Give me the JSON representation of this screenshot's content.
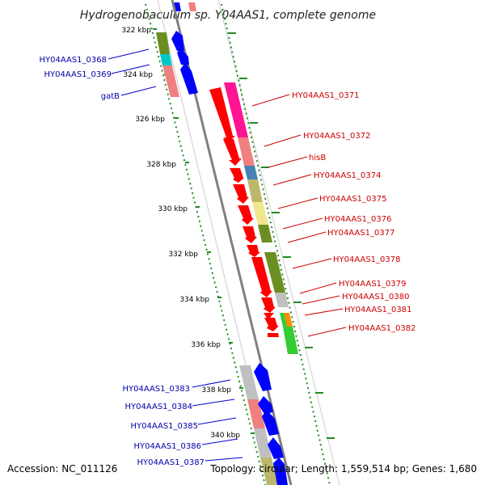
{
  "title": "Hydrogenobaculum sp. Y04AAS1, complete genome",
  "footer": {
    "accession": "Accession: NC_011126",
    "topology": "Topology: circular; Length: 1,559,514 bp; Genes: 1,680"
  },
  "colors": {
    "forward_label": "#cc0000",
    "reverse_label": "#0000aa",
    "forward_arrow": "#ff0000",
    "reverse_arrow": "#0000ff",
    "backbone": "#808080",
    "tick": "#228b22"
  },
  "ticks": [
    "322 kbp",
    "324 kbp",
    "326 kbp",
    "328 kbp",
    "330 kbp",
    "332 kbp",
    "334 kbp",
    "336 kbp",
    "338 kbp",
    "340 kbp"
  ],
  "genes": [
    {
      "label": "HY04AAS1_0368",
      "strand": "reverse",
      "cog_color": "#00c8c8"
    },
    {
      "label": "HY04AAS1_0369",
      "strand": "reverse",
      "cog_color": "#00c8c8"
    },
    {
      "label": "gatB",
      "strand": "reverse",
      "cog_color": "#f08080"
    },
    {
      "label": "HY04AAS1_0371",
      "strand": "forward",
      "cog_color": "#ff1493"
    },
    {
      "label": "HY04AAS1_0372",
      "strand": "forward",
      "cog_color": "#f08080"
    },
    {
      "label": "hisB",
      "strand": "forward",
      "cog_color": "#4682b4"
    },
    {
      "label": "HY04AAS1_0374",
      "strand": "forward",
      "cog_color": "#bdb76b"
    },
    {
      "label": "HY04AAS1_0375",
      "strand": "forward",
      "cog_color": "#f0e68c"
    },
    {
      "label": "HY04AAS1_0376",
      "strand": "forward",
      "cog_color": "#6b8e23"
    },
    {
      "label": "HY04AAS1_0377",
      "strand": "forward",
      "cog_color": "#6b8e23"
    },
    {
      "label": "HY04AAS1_0378",
      "strand": "forward",
      "cog_color": "#6b8e23"
    },
    {
      "label": "HY04AAS1_0379",
      "strand": "forward",
      "cog_color": "#c0c0c0"
    },
    {
      "label": "HY04AAS1_0380",
      "strand": "forward",
      "cog_color": "#c0c0c0"
    },
    {
      "label": "HY04AAS1_0381",
      "strand": "forward",
      "cog_color": "#ff8c00"
    },
    {
      "label": "HY04AAS1_0382",
      "strand": "forward",
      "cog_color": "#32cd32"
    },
    {
      "label": "HY04AAS1_0383",
      "strand": "reverse",
      "cog_color": "#c0c0c0"
    },
    {
      "label": "HY04AAS1_0384",
      "strand": "reverse",
      "cog_color": "#c0c0c0"
    },
    {
      "label": "HY04AAS1_0385",
      "strand": "reverse",
      "cog_color": "#f08080"
    },
    {
      "label": "HY04AAS1_0386",
      "strand": "reverse",
      "cog_color": "#c0c0c0"
    },
    {
      "label": "HY04AAS1_0387",
      "strand": "reverse",
      "cog_color": "#c0c0c0"
    }
  ]
}
